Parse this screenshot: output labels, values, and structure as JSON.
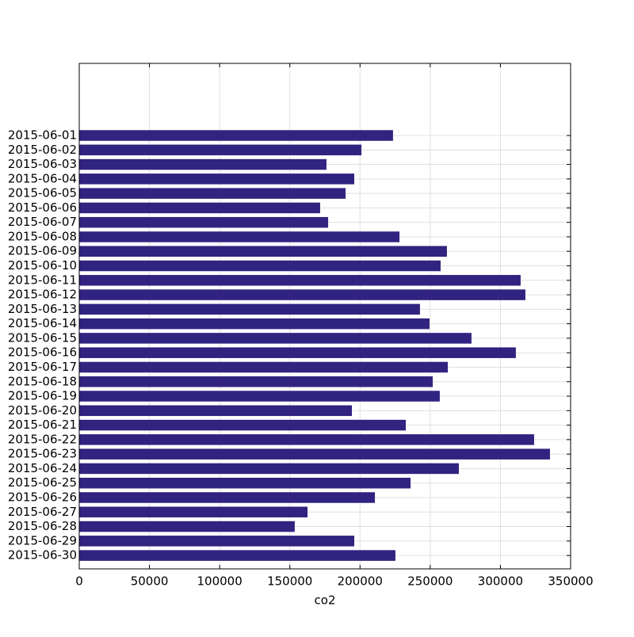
{
  "chart_data": {
    "type": "barh",
    "xlabel": "co2",
    "categories": [
      "2015-06-01",
      "2015-06-02",
      "2015-06-03",
      "2015-06-04",
      "2015-06-05",
      "2015-06-06",
      "2015-06-07",
      "2015-06-08",
      "2015-06-09",
      "2015-06-10",
      "2015-06-11",
      "2015-06-12",
      "2015-06-13",
      "2015-06-14",
      "2015-06-15",
      "2015-06-16",
      "2015-06-17",
      "2015-06-18",
      "2015-06-19",
      "2015-06-20",
      "2015-06-21",
      "2015-06-22",
      "2015-06-23",
      "2015-06-24",
      "2015-06-25",
      "2015-06-26",
      "2015-06-27",
      "2015-06-28",
      "2015-06-29",
      "2015-06-30"
    ],
    "values": [
      223500,
      201000,
      176100,
      195900,
      189700,
      171600,
      177300,
      228100,
      261900,
      257400,
      314400,
      317800,
      242700,
      249500,
      279400,
      311000,
      262500,
      251800,
      256800,
      194200,
      232600,
      324000,
      335300,
      270400,
      236000,
      210600,
      162600,
      153500,
      195900,
      225200
    ],
    "color": "#312380",
    "xlim": [
      0,
      350000
    ],
    "xticks": [
      0,
      50000,
      100000,
      150000,
      200000,
      250000,
      300000,
      350000
    ],
    "grid": true
  }
}
